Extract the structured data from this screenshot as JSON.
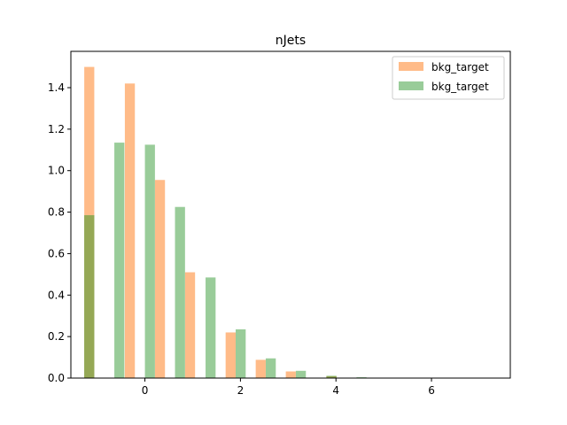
{
  "chart_data": {
    "type": "bar",
    "title": "nJets",
    "xlabel": "",
    "ylabel": "",
    "xlim": [
      -1.55,
      7.65
    ],
    "ylim": [
      0,
      1.575
    ],
    "x_ticks": [
      0,
      2,
      4,
      6
    ],
    "y_ticks": [
      0.0,
      0.2,
      0.4,
      0.6,
      0.8,
      1.0,
      1.2,
      1.4
    ],
    "legend_position": "top-right",
    "grid": false,
    "series": [
      {
        "name": "bkg_target",
        "color": "#ffbb88",
        "bin_width": 0.21,
        "bins": [
          {
            "x0": -1.27,
            "value": 1.5
          },
          {
            "x0": -0.42,
            "value": 1.42
          },
          {
            "x0": 0.21,
            "value": 0.955
          },
          {
            "x0": 0.84,
            "value": 0.51
          },
          {
            "x0": 1.69,
            "value": 0.22
          },
          {
            "x0": 2.32,
            "value": 0.088
          },
          {
            "x0": 2.95,
            "value": 0.032
          },
          {
            "x0": 3.8,
            "value": 0.009
          },
          {
            "x0": 4.43,
            "value": 0.002
          },
          {
            "x0": 5.06,
            "value": 0.0005
          },
          {
            "x0": 5.91,
            "value": 0.0002
          }
        ]
      },
      {
        "name": "bkg_target",
        "color": "#99cc99",
        "bin_width": 0.21,
        "bins": [
          {
            "x0": -1.27,
            "value": 0.785
          },
          {
            "x0": -0.64,
            "value": 1.135
          },
          {
            "x0": 0.0,
            "value": 1.125
          },
          {
            "x0": 0.63,
            "value": 0.825
          },
          {
            "x0": 1.27,
            "value": 0.485
          },
          {
            "x0": 1.9,
            "value": 0.235
          },
          {
            "x0": 2.53,
            "value": 0.095
          },
          {
            "x0": 3.16,
            "value": 0.035
          },
          {
            "x0": 3.8,
            "value": 0.011
          },
          {
            "x0": 4.43,
            "value": 0.004
          },
          {
            "x0": 5.06,
            "value": 0.001
          }
        ]
      }
    ],
    "overlap_color": "#95a855"
  }
}
